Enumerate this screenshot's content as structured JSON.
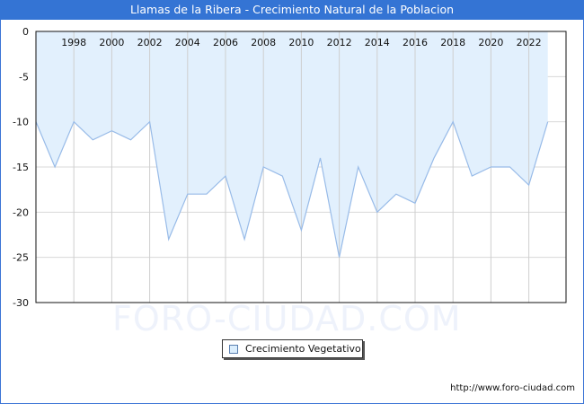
{
  "title": "Llamas de la Ribera - Crecimiento Natural de la Poblacion",
  "watermark": "FORO-CIUDAD.COM",
  "url": "http://www.foro-ciudad.com",
  "legend": {
    "label": "Crecimiento Vegetativo",
    "color": "#dbeefd"
  },
  "colors": {
    "header": "#3474d4",
    "fill": "#e2f0fd",
    "line": "#98bbe8",
    "grid": "#d8d8d8"
  },
  "chart_data": {
    "type": "area",
    "title": "Llamas de la Ribera - Crecimiento Natural de la Poblacion",
    "xlabel": "",
    "ylabel": "",
    "x": [
      1996,
      1997,
      1998,
      1999,
      2000,
      2001,
      2002,
      2003,
      2004,
      2005,
      2006,
      2007,
      2008,
      2009,
      2010,
      2011,
      2012,
      2013,
      2014,
      2015,
      2016,
      2017,
      2018,
      2019,
      2020,
      2021,
      2022,
      2023
    ],
    "series": [
      {
        "name": "Crecimiento Vegetativo",
        "values": [
          -10,
          -15,
          -10,
          -12,
          -11,
          -12,
          -10,
          -23,
          -18,
          -18,
          -16,
          -23,
          -15,
          -16,
          -22,
          -14,
          -25,
          -15,
          -20,
          -18,
          -19,
          -14,
          -10,
          -16,
          -15,
          -15,
          -17,
          -10
        ]
      }
    ],
    "x_tick_labels": [
      "1998",
      "2000",
      "2002",
      "2004",
      "2006",
      "2008",
      "2010",
      "2012",
      "2014",
      "2016",
      "2018",
      "2020",
      "2022"
    ],
    "y_tick_labels": [
      "0",
      "-5",
      "-10",
      "-15",
      "-20",
      "-25",
      "-30"
    ],
    "ylim": [
      -30,
      0
    ],
    "grid": true,
    "legend_position": "bottom"
  }
}
